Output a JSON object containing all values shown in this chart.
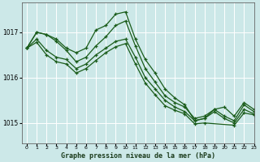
{
  "title": "Graphe pression niveau de la mer (hPa)",
  "bg_color": "#cce8e8",
  "grid_color": "#ffffff",
  "line_color": "#1a5c1a",
  "xlim": [
    -0.5,
    23
  ],
  "ylim": [
    1014.55,
    1017.65
  ],
  "yticks": [
    1015,
    1016,
    1017
  ],
  "xticks": [
    0,
    1,
    2,
    3,
    4,
    5,
    6,
    7,
    8,
    9,
    10,
    11,
    12,
    13,
    14,
    15,
    16,
    17,
    18,
    19,
    20,
    21,
    22,
    23
  ],
  "series": [
    {
      "x": [
        0,
        1,
        2,
        3,
        4,
        5,
        6,
        7,
        8,
        9,
        10,
        11,
        12,
        13,
        14,
        15,
        16,
        17,
        18,
        19,
        20,
        21,
        22,
        23
      ],
      "y": [
        1016.65,
        1017.0,
        1016.95,
        1016.85,
        1016.65,
        1016.55,
        1016.65,
        1017.05,
        1017.15,
        1017.4,
        1017.45,
        1016.85,
        1016.4,
        1016.1,
        1015.75,
        1015.55,
        1015.4,
        1015.05,
        1015.1,
        1015.3,
        1015.35,
        1015.15,
        1015.45,
        1015.3
      ]
    },
    {
      "x": [
        0,
        1,
        2,
        3,
        4,
        5,
        6,
        7,
        8,
        9,
        10,
        11,
        12,
        13,
        14,
        15,
        16,
        17,
        18,
        19,
        20,
        21,
        22,
        23
      ],
      "y": [
        1016.65,
        1017.0,
        1016.95,
        1016.8,
        1016.6,
        1016.35,
        1016.45,
        1016.7,
        1016.9,
        1017.15,
        1017.25,
        1016.7,
        1016.2,
        1015.9,
        1015.6,
        1015.45,
        1015.35,
        1015.1,
        1015.15,
        1015.3,
        1015.15,
        1015.05,
        1015.4,
        1015.25
      ]
    },
    {
      "x": [
        0,
        1,
        2,
        3,
        4,
        5,
        6,
        7,
        8,
        9,
        10,
        11,
        12,
        13,
        14,
        15,
        16,
        17,
        18,
        19,
        20,
        21,
        22,
        23
      ],
      "y": [
        1016.65,
        1016.85,
        1016.6,
        1016.45,
        1016.4,
        1016.2,
        1016.3,
        1016.5,
        1016.65,
        1016.8,
        1016.85,
        1016.45,
        1016.0,
        1015.75,
        1015.5,
        1015.35,
        1015.25,
        1015.05,
        1015.1,
        1015.25,
        1015.1,
        1015.0,
        1015.3,
        1015.2
      ]
    },
    {
      "x": [
        0,
        1,
        2,
        3,
        4,
        5,
        6,
        7,
        8,
        9,
        10,
        11,
        12,
        13,
        14,
        15,
        16,
        17,
        18,
        21,
        22,
        23
      ],
      "y": [
        1016.65,
        1016.78,
        1016.5,
        1016.35,
        1016.3,
        1016.1,
        1016.2,
        1016.38,
        1016.55,
        1016.68,
        1016.75,
        1016.3,
        1015.88,
        1015.62,
        1015.38,
        1015.28,
        1015.2,
        1014.98,
        1015.0,
        1014.95,
        1015.22,
        1015.18
      ]
    }
  ]
}
